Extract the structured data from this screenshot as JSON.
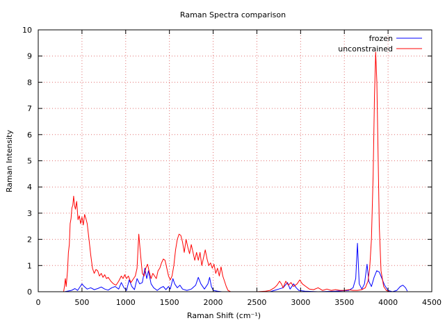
{
  "chart_data": {
    "type": "line",
    "title": "Raman Spectra comparison",
    "xlabel": "Raman Shift (cm⁻¹)",
    "ylabel": "Raman Intensity",
    "xlim": [
      0,
      4500
    ],
    "ylim": [
      0,
      10
    ],
    "xticks": [
      0,
      500,
      1000,
      1500,
      2000,
      2500,
      3000,
      3500,
      4000,
      4500
    ],
    "yticks": [
      0,
      1,
      2,
      3,
      4,
      5,
      6,
      7,
      8,
      9,
      10
    ],
    "grid": true,
    "legend_position": "top-right",
    "series": [
      {
        "name": "frozen",
        "color": "#0000ff",
        "points": [
          [
            300,
            0
          ],
          [
            380,
            0.05
          ],
          [
            420,
            0.12
          ],
          [
            450,
            0.05
          ],
          [
            480,
            0.2
          ],
          [
            500,
            0.3
          ],
          [
            520,
            0.22
          ],
          [
            560,
            0.1
          ],
          [
            600,
            0.15
          ],
          [
            640,
            0.08
          ],
          [
            680,
            0.12
          ],
          [
            720,
            0.18
          ],
          [
            760,
            0.1
          ],
          [
            800,
            0.06
          ],
          [
            840,
            0.15
          ],
          [
            880,
            0.2
          ],
          [
            920,
            0.1
          ],
          [
            950,
            0.35
          ],
          [
            980,
            0.15
          ],
          [
            1010,
            0.05
          ],
          [
            1040,
            0.45
          ],
          [
            1070,
            0.2
          ],
          [
            1100,
            0.08
          ],
          [
            1130,
            0.5
          ],
          [
            1160,
            0.3
          ],
          [
            1190,
            0.35
          ],
          [
            1220,
            0.9
          ],
          [
            1240,
            0.5
          ],
          [
            1260,
            0.8
          ],
          [
            1290,
            0.3
          ],
          [
            1320,
            0.15
          ],
          [
            1360,
            0.05
          ],
          [
            1400,
            0.15
          ],
          [
            1430,
            0.2
          ],
          [
            1460,
            0.08
          ],
          [
            1490,
            0.2
          ],
          [
            1510,
            0.1
          ],
          [
            1540,
            0.5
          ],
          [
            1560,
            0.3
          ],
          [
            1590,
            0.15
          ],
          [
            1620,
            0.25
          ],
          [
            1650,
            0.1
          ],
          [
            1700,
            0.05
          ],
          [
            1750,
            0.1
          ],
          [
            1800,
            0.25
          ],
          [
            1830,
            0.55
          ],
          [
            1860,
            0.3
          ],
          [
            1900,
            0.1
          ],
          [
            1940,
            0.3
          ],
          [
            1960,
            0.55
          ],
          [
            1980,
            0.2
          ],
          [
            2000,
            0.05
          ],
          [
            2050,
            0.02
          ],
          [
            2100,
            0
          ],
          [
            2200,
            0
          ],
          [
            2500,
            0
          ],
          [
            2650,
            0
          ],
          [
            2700,
            0.05
          ],
          [
            2750,
            0.1
          ],
          [
            2800,
            0.15
          ],
          [
            2850,
            0.35
          ],
          [
            2880,
            0.1
          ],
          [
            2920,
            0.3
          ],
          [
            2950,
            0.15
          ],
          [
            2980,
            0.05
          ],
          [
            3050,
            0.02
          ],
          [
            3200,
            0
          ],
          [
            3400,
            0.02
          ],
          [
            3550,
            0.05
          ],
          [
            3600,
            0.15
          ],
          [
            3630,
            0.5
          ],
          [
            3650,
            1.85
          ],
          [
            3670,
            0.3
          ],
          [
            3700,
            0.1
          ],
          [
            3730,
            0.3
          ],
          [
            3760,
            1.05
          ],
          [
            3780,
            0.4
          ],
          [
            3810,
            0.2
          ],
          [
            3840,
            0.55
          ],
          [
            3870,
            0.8
          ],
          [
            3900,
            0.75
          ],
          [
            3930,
            0.5
          ],
          [
            3960,
            0.25
          ],
          [
            4000,
            0.05
          ],
          [
            4050,
            0
          ],
          [
            4100,
            0.05
          ],
          [
            4140,
            0.2
          ],
          [
            4170,
            0.25
          ],
          [
            4200,
            0.15
          ],
          [
            4220,
            0.02
          ]
        ]
      },
      {
        "name": "unconstrained",
        "color": "#ff0000",
        "points": [
          [
            290,
            0
          ],
          [
            300,
            0.2
          ],
          [
            310,
            0.5
          ],
          [
            320,
            0.2
          ],
          [
            335,
            0.8
          ],
          [
            345,
            1.5
          ],
          [
            355,
            1.8
          ],
          [
            365,
            2.6
          ],
          [
            375,
            2.8
          ],
          [
            385,
            3.2
          ],
          [
            395,
            3.3
          ],
          [
            405,
            3.65
          ],
          [
            415,
            3.3
          ],
          [
            425,
            3.15
          ],
          [
            440,
            3.45
          ],
          [
            455,
            2.75
          ],
          [
            470,
            2.9
          ],
          [
            485,
            2.6
          ],
          [
            500,
            2.85
          ],
          [
            515,
            2.55
          ],
          [
            530,
            2.95
          ],
          [
            545,
            2.8
          ],
          [
            560,
            2.6
          ],
          [
            580,
            2.0
          ],
          [
            600,
            1.4
          ],
          [
            620,
            0.9
          ],
          [
            640,
            0.7
          ],
          [
            660,
            0.85
          ],
          [
            680,
            0.8
          ],
          [
            700,
            0.6
          ],
          [
            720,
            0.7
          ],
          [
            740,
            0.55
          ],
          [
            760,
            0.65
          ],
          [
            780,
            0.5
          ],
          [
            800,
            0.55
          ],
          [
            830,
            0.4
          ],
          [
            860,
            0.3
          ],
          [
            890,
            0.25
          ],
          [
            920,
            0.4
          ],
          [
            950,
            0.6
          ],
          [
            970,
            0.5
          ],
          [
            990,
            0.65
          ],
          [
            1010,
            0.5
          ],
          [
            1030,
            0.6
          ],
          [
            1060,
            0.35
          ],
          [
            1090,
            0.5
          ],
          [
            1110,
            0.6
          ],
          [
            1130,
            0.9
          ],
          [
            1150,
            2.2
          ],
          [
            1170,
            1.4
          ],
          [
            1190,
            0.7
          ],
          [
            1210,
            0.6
          ],
          [
            1230,
            0.9
          ],
          [
            1250,
            1.05
          ],
          [
            1270,
            0.75
          ],
          [
            1290,
            0.5
          ],
          [
            1310,
            0.7
          ],
          [
            1330,
            0.6
          ],
          [
            1350,
            0.5
          ],
          [
            1370,
            0.8
          ],
          [
            1390,
            0.9
          ],
          [
            1410,
            1.1
          ],
          [
            1430,
            1.25
          ],
          [
            1450,
            1.2
          ],
          [
            1470,
            0.9
          ],
          [
            1490,
            0.6
          ],
          [
            1510,
            0.45
          ],
          [
            1530,
            0.6
          ],
          [
            1550,
            1.0
          ],
          [
            1570,
            1.6
          ],
          [
            1590,
            2.0
          ],
          [
            1610,
            2.2
          ],
          [
            1630,
            2.15
          ],
          [
            1650,
            1.9
          ],
          [
            1670,
            1.5
          ],
          [
            1690,
            2.0
          ],
          [
            1710,
            1.7
          ],
          [
            1730,
            1.45
          ],
          [
            1750,
            1.8
          ],
          [
            1770,
            1.5
          ],
          [
            1790,
            1.2
          ],
          [
            1810,
            1.5
          ],
          [
            1830,
            1.2
          ],
          [
            1850,
            1.5
          ],
          [
            1870,
            1.0
          ],
          [
            1890,
            1.3
          ],
          [
            1910,
            1.6
          ],
          [
            1930,
            1.25
          ],
          [
            1950,
            1.0
          ],
          [
            1970,
            1.1
          ],
          [
            1990,
            0.9
          ],
          [
            2010,
            1.05
          ],
          [
            2030,
            0.7
          ],
          [
            2050,
            0.9
          ],
          [
            2070,
            0.6
          ],
          [
            2090,
            0.95
          ],
          [
            2110,
            0.6
          ],
          [
            2130,
            0.4
          ],
          [
            2150,
            0.2
          ],
          [
            2170,
            0.05
          ],
          [
            2200,
            0
          ],
          [
            2500,
            0
          ],
          [
            2600,
            0.02
          ],
          [
            2650,
            0.05
          ],
          [
            2700,
            0.15
          ],
          [
            2730,
            0.25
          ],
          [
            2760,
            0.4
          ],
          [
            2780,
            0.3
          ],
          [
            2800,
            0.15
          ],
          [
            2830,
            0.4
          ],
          [
            2860,
            0.25
          ],
          [
            2890,
            0.35
          ],
          [
            2920,
            0.2
          ],
          [
            2960,
            0.3
          ],
          [
            2990,
            0.45
          ],
          [
            3020,
            0.3
          ],
          [
            3060,
            0.2
          ],
          [
            3100,
            0.1
          ],
          [
            3150,
            0.08
          ],
          [
            3200,
            0.15
          ],
          [
            3250,
            0.05
          ],
          [
            3300,
            0.1
          ],
          [
            3350,
            0.05
          ],
          [
            3400,
            0.08
          ],
          [
            3450,
            0.05
          ],
          [
            3500,
            0.05
          ],
          [
            3550,
            0.08
          ],
          [
            3600,
            0.05
          ],
          [
            3650,
            0.05
          ],
          [
            3700,
            0.08
          ],
          [
            3740,
            0.15
          ],
          [
            3770,
            0.4
          ],
          [
            3790,
            0.9
          ],
          [
            3810,
            2.0
          ],
          [
            3830,
            4.5
          ],
          [
            3845,
            7.5
          ],
          [
            3858,
            9.15
          ],
          [
            3872,
            8.0
          ],
          [
            3885,
            5.5
          ],
          [
            3900,
            2.5
          ],
          [
            3920,
            0.8
          ],
          [
            3950,
            0.2
          ],
          [
            3980,
            0.05
          ],
          [
            4020,
            0
          ]
        ]
      }
    ]
  }
}
